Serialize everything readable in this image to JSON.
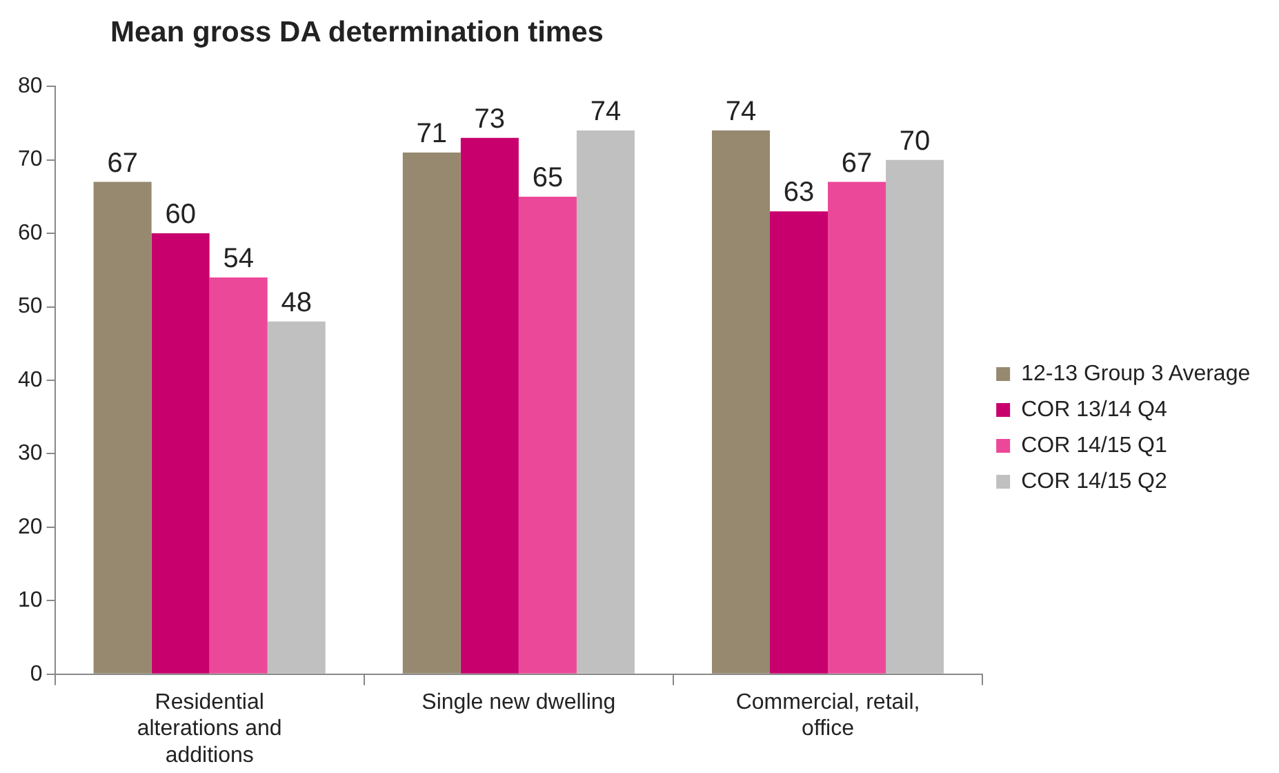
{
  "chart_data": {
    "type": "bar",
    "title": "Mean gross DA determination times",
    "categories": [
      "Residential alterations and additions",
      "Single new dwelling",
      "Commercial, retail, office"
    ],
    "series": [
      {
        "name": "12-13 Group 3 Average",
        "color": "#968970",
        "values": [
          67,
          71,
          74
        ]
      },
      {
        "name": "COR 13/14 Q4",
        "color": "#c8006e",
        "values": [
          60,
          73,
          63
        ]
      },
      {
        "name": "COR 14/15 Q1",
        "color": "#ec4899",
        "values": [
          54,
          65,
          67
        ]
      },
      {
        "name": "COR 14/15 Q2",
        "color": "#c0c0c0",
        "values": [
          48,
          74,
          70
        ]
      }
    ],
    "ylim": [
      0,
      80
    ],
    "yticks": [
      0,
      10,
      20,
      30,
      40,
      50,
      60,
      70,
      80
    ],
    "grid": false,
    "legend": "right",
    "data_labels": true
  }
}
